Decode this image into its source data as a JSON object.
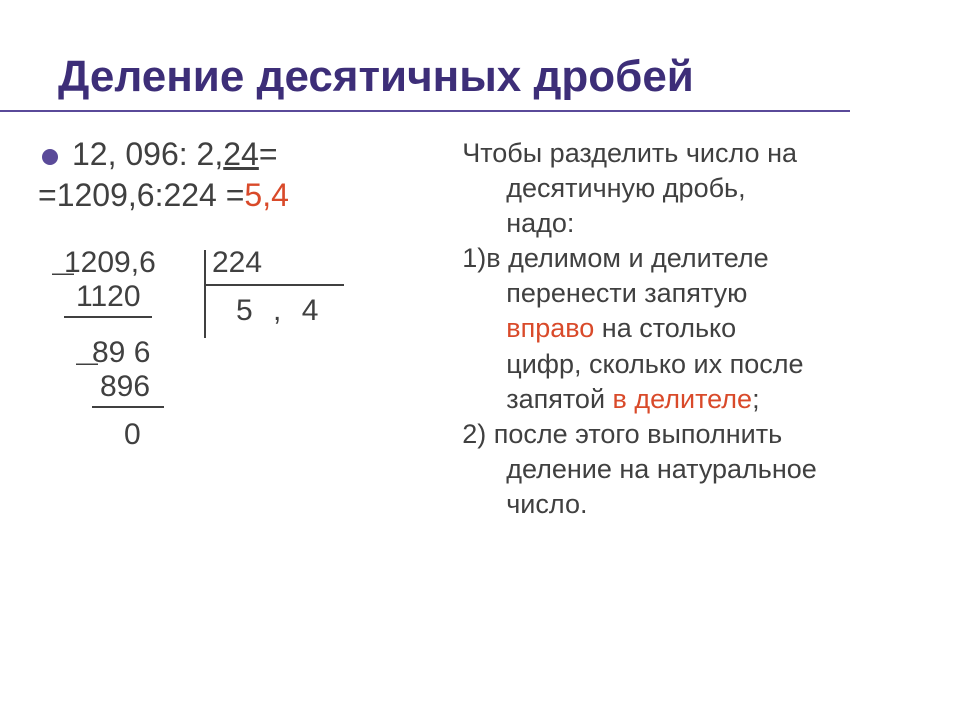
{
  "colors": {
    "title": "#3d2e78",
    "title_underline": "#5a4a99",
    "bullet": "#5a4a99",
    "body_text": "#404040",
    "result": "#d94a2a",
    "highlight": "#d94a2a"
  },
  "title": "Деление десятичных дробей",
  "left": {
    "expr1_a": "12, 096: 2,",
    "expr1_under": "24",
    "expr1_b": "=",
    "expr2_a": "=1209,6:224 =",
    "expr2_result": "5,4",
    "longdiv": {
      "dividend": "1209,6",
      "divisor": "224",
      "quotient": "5 ,  4",
      "sub1": "1120",
      "rem1": "89 6",
      "sub2": "896",
      "rem2": "0",
      "minus": "—"
    }
  },
  "right": {
    "intro_l1": "Чтобы разделить число на",
    "intro_l2": "десятичную дробь,",
    "intro_l3": "надо:",
    "item1_l1": "1)в делимом и делителе",
    "item1_l2": "перенести запятую",
    "item1_hl1": "вправо",
    "item1_l3": " на столько",
    "item1_l4": "цифр, сколько их после",
    "item1_l5": "запятой ",
    "item1_hl2": "в делителе",
    "item1_l6": ";",
    "item2_l1": "2) после этого выполнить",
    "item2_l2": "деление на натуральное",
    "item2_l3": "число."
  },
  "fontsize": {
    "title": 44,
    "expr": 32,
    "longdiv": 30,
    "body": 27
  }
}
